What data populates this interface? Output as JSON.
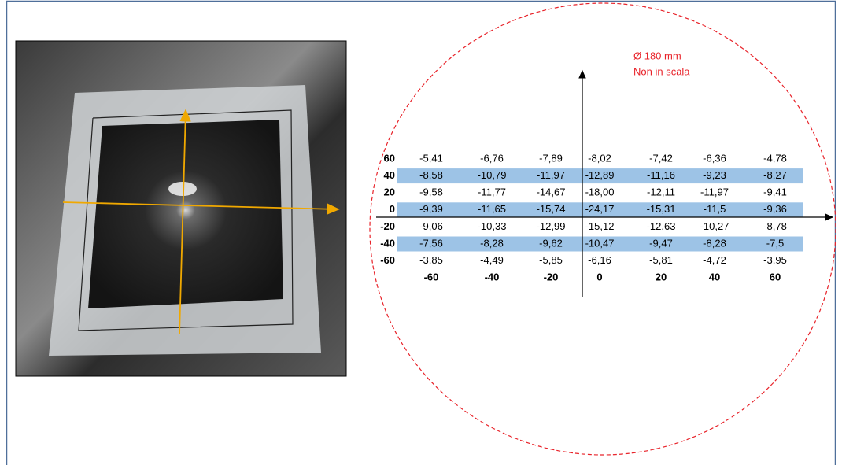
{
  "annotation": {
    "diameter": "Ø 180 mm",
    "scale_note": "Non in scala"
  },
  "table": {
    "rows": [
      {
        "label": "60",
        "cells": [
          "-5,41",
          "-6,76",
          "-7,89",
          "-8,02",
          "-7,42",
          "-6,36",
          "-4,78"
        ]
      },
      {
        "label": "40",
        "cells": [
          "-8,58",
          "-10,79",
          "-11,97",
          "-12,89",
          "-11,16",
          "-9,23",
          "-8,27"
        ]
      },
      {
        "label": "20",
        "cells": [
          "-9,58",
          "-11,77",
          "-14,67",
          "-18,00",
          "-12,11",
          "-11,97",
          "-9,41"
        ]
      },
      {
        "label": "0",
        "cells": [
          "-9,39",
          "-11,65",
          "-15,74",
          "-24,17",
          "-15,31",
          "-11,5",
          "-9,36"
        ]
      },
      {
        "label": "-20",
        "cells": [
          "-9,06",
          "-10,33",
          "-12,99",
          "-15,12",
          "-12,63",
          "-10,27",
          "-8,78"
        ]
      },
      {
        "label": "-40",
        "cells": [
          "-7,56",
          "-8,28",
          "-9,62",
          "-10,47",
          "-9,47",
          "-8,28",
          "-7,5"
        ]
      },
      {
        "label": "-60",
        "cells": [
          "-3,85",
          "-4,49",
          "-5,85",
          "-6,16",
          "-5,81",
          "-4,72",
          "-3,95"
        ]
      }
    ],
    "column_labels": [
      "-60",
      "-40",
      "-20",
      "0",
      "20",
      "40",
      "60"
    ]
  }
}
